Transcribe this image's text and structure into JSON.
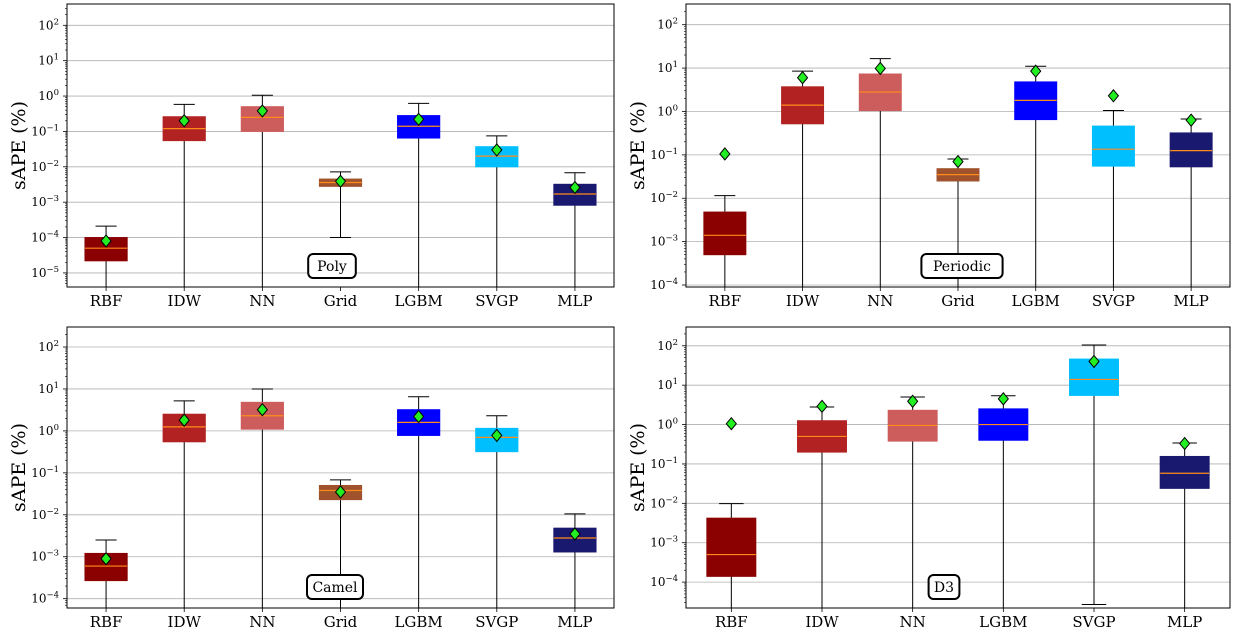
{
  "chart_data": [
    {
      "type": "box",
      "label": "Poly",
      "ylabel": "sAPE (%)",
      "yscale": "log",
      "ylim": [
        4e-06,
        400
      ],
      "yticks": [
        1e-05,
        0.0001,
        0.001,
        0.01,
        0.1,
        1,
        10,
        100
      ],
      "grid": "y",
      "categories": [
        "RBF",
        "IDW",
        "NN",
        "Grid",
        "LGBM",
        "SVGP",
        "MLP"
      ],
      "colors": [
        "#8b0000",
        "#b22222",
        "#cd5c5c",
        "#a0522d",
        "#0000ff",
        "#00bfff",
        "#191970"
      ],
      "boxes": [
        {
          "low": 4e-06,
          "q1": 2.2e-05,
          "median": 5e-05,
          "q3": 0.0001,
          "high": 0.00021,
          "mean": 8e-05
        },
        {
          "low": 4e-06,
          "q1": 0.055,
          "median": 0.12,
          "q3": 0.26,
          "high": 0.58,
          "mean": 0.2
        },
        {
          "low": 4e-06,
          "q1": 0.1,
          "median": 0.25,
          "q3": 0.5,
          "high": 1.05,
          "mean": 0.38
        },
        {
          "low": 0.0001,
          "q1": 0.0028,
          "median": 0.0036,
          "q3": 0.0045,
          "high": 0.0072,
          "mean": 0.0039
        },
        {
          "low": 4e-06,
          "q1": 0.065,
          "median": 0.14,
          "q3": 0.28,
          "high": 0.62,
          "mean": 0.22
        },
        {
          "low": 4e-06,
          "q1": 0.01,
          "median": 0.02,
          "q3": 0.037,
          "high": 0.075,
          "mean": 0.03
        },
        {
          "low": 4e-06,
          "q1": 0.00082,
          "median": 0.0017,
          "q3": 0.0032,
          "high": 0.0068,
          "mean": 0.0026
        }
      ]
    },
    {
      "type": "box",
      "label": "Periodic",
      "ylabel": "sAPE (%)",
      "yscale": "log",
      "ylim": [
        9e-05,
        300
      ],
      "yticks": [
        0.0001,
        0.001,
        0.01,
        0.1,
        1,
        10,
        100
      ],
      "grid": "y",
      "categories": [
        "RBF",
        "IDW",
        "NN",
        "Grid",
        "LGBM",
        "SVGP",
        "MLP"
      ],
      "colors": [
        "#8b0000",
        "#b22222",
        "#cd5c5c",
        "#a0522d",
        "#0000ff",
        "#00bfff",
        "#191970"
      ],
      "boxes": [
        {
          "low": 9e-05,
          "q1": 0.0005,
          "median": 0.0014,
          "q3": 0.0048,
          "high": 0.0115,
          "mean": 0.105
        },
        {
          "low": 9e-05,
          "q1": 0.52,
          "median": 1.4,
          "q3": 3.7,
          "high": 8.5,
          "mean": 6.0
        },
        {
          "low": 9e-05,
          "q1": 1.05,
          "median": 2.8,
          "q3": 7.3,
          "high": 16.5,
          "mean": 9.8
        },
        {
          "low": 9e-05,
          "q1": 0.025,
          "median": 0.035,
          "q3": 0.048,
          "high": 0.08,
          "mean": 0.07
        },
        {
          "low": 9e-05,
          "q1": 0.65,
          "median": 1.8,
          "q3": 4.8,
          "high": 11.0,
          "mean": 8.5
        },
        {
          "low": 9e-05,
          "q1": 0.055,
          "median": 0.135,
          "q3": 0.46,
          "high": 1.05,
          "mean": 2.3
        },
        {
          "low": 9e-05,
          "q1": 0.053,
          "median": 0.125,
          "q3": 0.32,
          "high": 0.67,
          "mean": 0.63
        }
      ]
    },
    {
      "type": "box",
      "label": "Camel",
      "ylabel": "sAPE (%)",
      "yscale": "log",
      "ylim": [
        6e-05,
        300
      ],
      "yticks": [
        0.0001,
        0.001,
        0.01,
        0.1,
        1,
        10,
        100
      ],
      "grid": "y",
      "categories": [
        "RBF",
        "IDW",
        "NN",
        "Grid",
        "LGBM",
        "SVGP",
        "MLP"
      ],
      "colors": [
        "#8b0000",
        "#b22222",
        "#cd5c5c",
        "#a0522d",
        "#0000ff",
        "#00bfff",
        "#191970"
      ],
      "boxes": [
        {
          "low": 6e-05,
          "q1": 0.00027,
          "median": 0.0006,
          "q3": 0.0012,
          "high": 0.0025,
          "mean": 0.0009
        },
        {
          "low": 6e-05,
          "q1": 0.55,
          "median": 1.25,
          "q3": 2.5,
          "high": 5.2,
          "mean": 1.8
        },
        {
          "low": 6e-05,
          "q1": 1.1,
          "median": 2.3,
          "q3": 4.8,
          "high": 10.0,
          "mean": 3.2
        },
        {
          "low": 6e-05,
          "q1": 0.023,
          "median": 0.038,
          "q3": 0.05,
          "high": 0.068,
          "mean": 0.035
        },
        {
          "low": 6e-05,
          "q1": 0.78,
          "median": 1.6,
          "q3": 3.2,
          "high": 6.5,
          "mean": 2.2
        },
        {
          "low": 6e-05,
          "q1": 0.32,
          "median": 0.7,
          "q3": 1.15,
          "high": 2.3,
          "mean": 0.78
        },
        {
          "low": 6e-05,
          "q1": 0.0013,
          "median": 0.0028,
          "q3": 0.0048,
          "high": 0.0105,
          "mean": 0.0035
        }
      ]
    },
    {
      "type": "box",
      "label": "D3",
      "ylabel": "sAPE (%)",
      "yscale": "log",
      "ylim": [
        2.2e-05,
        300
      ],
      "yticks": [
        0.0001,
        0.001,
        0.01,
        0.1,
        1,
        10,
        100
      ],
      "grid": "y",
      "categories": [
        "RBF",
        "IDW",
        "NN",
        "LGBM",
        "SVGP",
        "MLP"
      ],
      "colors": [
        "#8b0000",
        "#b22222",
        "#cd5c5c",
        "#0000ff",
        "#00bfff",
        "#191970"
      ],
      "boxes": [
        {
          "low": 2.2e-05,
          "q1": 0.00014,
          "median": 0.0005,
          "q3": 0.0042,
          "high": 0.0098,
          "mean": 1.05
        },
        {
          "low": 2.2e-05,
          "q1": 0.2,
          "median": 0.5,
          "q3": 1.25,
          "high": 2.8,
          "mean": 2.9
        },
        {
          "low": 2.2e-05,
          "q1": 0.38,
          "median": 0.95,
          "q3": 2.3,
          "high": 5.0,
          "mean": 3.9
        },
        {
          "low": 2.2e-05,
          "q1": 0.4,
          "median": 1.0,
          "q3": 2.5,
          "high": 5.4,
          "mean": 4.5
        },
        {
          "low": 2.7e-05,
          "q1": 5.5,
          "median": 14.0,
          "q3": 46.0,
          "high": 105.0,
          "mean": 40.0
        },
        {
          "low": 2.2e-05,
          "q1": 0.024,
          "median": 0.058,
          "q3": 0.155,
          "high": 0.34,
          "mean": 0.33
        }
      ]
    }
  ]
}
